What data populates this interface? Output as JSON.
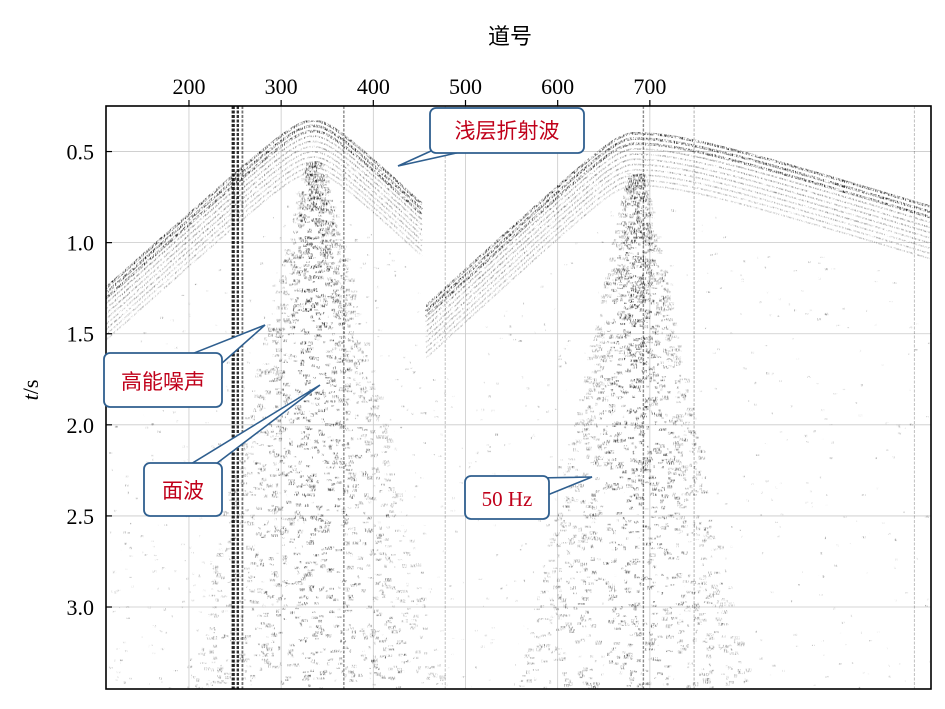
{
  "chart_data": {
    "type": "seismic-record",
    "xlabel": "道号",
    "ylabel_italic": "t",
    "ylabel_unit": "/s",
    "x_ticks": [
      200,
      300,
      400,
      500,
      600,
      700
    ],
    "y_ticks": [
      "0.5",
      "1.0",
      "1.5",
      "2.0",
      "2.5",
      "3.0"
    ],
    "xlim": [
      110,
      1005
    ],
    "ylim": [
      0.25,
      3.45
    ],
    "grid": true,
    "records": [
      {
        "x_start": 110,
        "x_end": 456,
        "apex_x": 335,
        "apex_t": 0.33,
        "edge_t_left": 1.35,
        "edge_t_right": 0.9
      },
      {
        "x_start": 457,
        "x_end": 1005,
        "apex_x": 683,
        "apex_t": 0.4,
        "edge_t_left": 1.45,
        "edge_t_right": 0.9
      }
    ],
    "annotations": [
      {
        "key": "refraction",
        "text": "浅层折射波",
        "target": [
          347,
          0.55
        ]
      },
      {
        "key": "noise",
        "text": "高能噪声",
        "target": [
          244,
          1.42
        ]
      },
      {
        "key": "surface",
        "text": "面波",
        "target": [
          300,
          1.75
        ]
      },
      {
        "key": "hz50",
        "text": "50 Hz",
        "target": [
          535,
          2.27
        ]
      }
    ]
  }
}
